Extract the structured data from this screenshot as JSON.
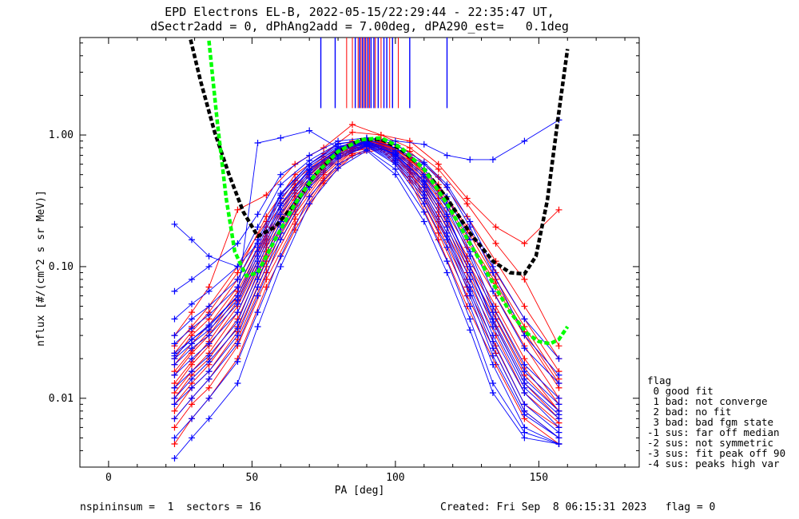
{
  "title": {
    "line1": "EPD Electrons EL-B, 2022-05-15/22:29:44 - 22:35:47 UT,",
    "line2": "dSectr2add = 0, dPhAng2add = 7.00deg, dPA290_est=   0.1deg"
  },
  "legend": {
    "header": "flag",
    "items": [
      " 0 good fit",
      " 1 bad: not converge",
      " 2 bad: no fit",
      " 3 bad: bad fgm state",
      "-1 sus: far off median",
      "-2 sus: not symmetric",
      "-3 sus: fit peak off 90",
      "-4 sus: peaks high var"
    ]
  },
  "footer": {
    "left": "nspininsum =  1  sectors = 16",
    "right": "Created: Fri Sep  8 06:15:31 2023   flag = 0"
  },
  "colors": {
    "red": "#ff0000",
    "blue": "#0000ff",
    "black": "#000000",
    "green": "#00ff00"
  },
  "chart_data": {
    "type": "line",
    "xlabel": "PA [deg]",
    "ylabel": "nflux [#/(cm^2 s sr MeV)]",
    "xlim": [
      -10,
      185
    ],
    "ylim": [
      0.003,
      5.5
    ],
    "yscale": "log",
    "xticks": [
      0,
      50,
      100,
      150
    ],
    "yticks": [
      {
        "v": 0.01,
        "label": "0.01"
      },
      {
        "v": 0.1,
        "label": "0.10"
      },
      {
        "v": 1.0,
        "label": "1.00"
      }
    ],
    "vertical_markers": {
      "red": [
        83,
        85,
        87,
        88,
        89,
        90,
        91,
        93,
        95,
        98,
        101
      ],
      "blue": [
        74,
        79,
        86,
        87.5,
        88.5,
        89.5,
        90.5,
        91.5,
        92.5,
        94,
        96,
        97,
        99,
        105,
        118
      ]
    },
    "fit_curves": [
      {
        "color": "black",
        "x": [
          28,
          32,
          37,
          42,
          47,
          52,
          58,
          65,
          72,
          80,
          88,
          95,
          102,
          110,
          118,
          126,
          134,
          140,
          145,
          149,
          153,
          157,
          160
        ],
        "y": [
          6.0,
          2.6,
          1.05,
          0.5,
          0.26,
          0.17,
          0.2,
          0.3,
          0.5,
          0.75,
          0.92,
          0.93,
          0.78,
          0.55,
          0.33,
          0.18,
          0.11,
          0.09,
          0.088,
          0.12,
          0.32,
          1.5,
          4.5
        ]
      },
      {
        "color": "green",
        "x": [
          35,
          38,
          41,
          44,
          48,
          52,
          58,
          65,
          72,
          80,
          88,
          95,
          102,
          110,
          118,
          126,
          134,
          140,
          146,
          150,
          154,
          157,
          160
        ],
        "y": [
          5.2,
          1.2,
          0.33,
          0.13,
          0.085,
          0.09,
          0.16,
          0.3,
          0.5,
          0.75,
          0.92,
          0.95,
          0.8,
          0.55,
          0.3,
          0.15,
          0.075,
          0.045,
          0.031,
          0.027,
          0.026,
          0.028,
          0.035
        ]
      }
    ],
    "red_series_x": [
      23,
      29,
      35,
      45,
      55,
      65,
      75,
      85,
      95,
      105,
      115,
      125,
      135,
      145,
      157
    ],
    "red_series": [
      [
        0.012,
        0.018,
        0.025,
        0.05,
        0.14,
        0.32,
        0.58,
        0.82,
        0.86,
        0.62,
        0.3,
        0.12,
        0.05,
        0.02,
        0.009
      ],
      [
        0.009,
        0.013,
        0.018,
        0.035,
        0.11,
        0.27,
        0.52,
        0.78,
        0.84,
        0.55,
        0.24,
        0.09,
        0.035,
        0.013,
        0.007
      ],
      [
        0.015,
        0.022,
        0.03,
        0.06,
        0.16,
        0.36,
        0.6,
        0.85,
        0.88,
        0.66,
        0.36,
        0.16,
        0.07,
        0.03,
        0.012
      ],
      [
        0.007,
        0.01,
        0.014,
        0.028,
        0.09,
        0.23,
        0.47,
        0.75,
        0.82,
        0.52,
        0.2,
        0.07,
        0.025,
        0.009,
        0.006
      ],
      [
        0.02,
        0.03,
        0.04,
        0.08,
        0.2,
        0.42,
        0.65,
        0.88,
        0.9,
        0.7,
        0.42,
        0.2,
        0.09,
        0.04,
        0.016
      ],
      [
        0.011,
        0.016,
        0.022,
        0.045,
        0.13,
        0.3,
        0.56,
        0.8,
        0.85,
        0.6,
        0.28,
        0.11,
        0.045,
        0.017,
        0.008
      ],
      [
        0.006,
        0.009,
        0.012,
        0.025,
        0.08,
        0.21,
        0.45,
        0.72,
        0.8,
        0.48,
        0.18,
        0.06,
        0.022,
        0.008,
        0.005
      ],
      [
        0.025,
        0.035,
        0.05,
        0.1,
        0.22,
        0.45,
        0.68,
        0.9,
        0.92,
        0.75,
        0.48,
        0.24,
        0.11,
        0.05,
        0.02
      ],
      [
        0.013,
        0.019,
        0.027,
        0.055,
        0.15,
        0.34,
        0.59,
        0.83,
        0.87,
        0.64,
        0.33,
        0.14,
        0.06,
        0.025,
        0.01
      ],
      [
        0.008,
        0.012,
        0.016,
        0.032,
        0.1,
        0.25,
        0.5,
        0.76,
        0.83,
        0.54,
        0.22,
        0.08,
        0.03,
        0.011,
        0.0065
      ],
      [
        0.018,
        0.026,
        0.036,
        0.07,
        0.18,
        0.4,
        0.63,
        0.87,
        0.89,
        0.68,
        0.4,
        0.19,
        0.08,
        0.035,
        0.014
      ],
      [
        0.01,
        0.015,
        0.02,
        0.04,
        0.12,
        0.29,
        0.54,
        0.79,
        0.84,
        0.58,
        0.26,
        0.1,
        0.04,
        0.015,
        0.008
      ],
      [
        0.0045,
        0.007,
        0.01,
        0.02,
        0.07,
        0.19,
        0.43,
        0.7,
        0.78,
        0.45,
        0.16,
        0.05,
        0.018,
        0.007,
        0.0045
      ],
      [
        0.022,
        0.032,
        0.045,
        0.09,
        0.24,
        0.5,
        0.72,
        1.05,
        1.0,
        0.8,
        0.55,
        0.3,
        0.15,
        0.08,
        0.025
      ],
      [
        0.016,
        0.023,
        0.032,
        0.065,
        0.17,
        0.38,
        0.62,
        0.86,
        0.88,
        0.67,
        0.38,
        0.17,
        0.075,
        0.032,
        0.013
      ],
      [
        0.03,
        0.045,
        0.07,
        0.27,
        0.35,
        0.6,
        0.8,
        1.2,
        1.0,
        0.9,
        0.6,
        0.33,
        0.2,
        0.15,
        0.27
      ]
    ],
    "blue_series_x": [
      23,
      29,
      35,
      45,
      52,
      60,
      70,
      80,
      90,
      100,
      110,
      118,
      126,
      134,
      145,
      157
    ],
    "blue_series": [
      [
        0.022,
        0.028,
        0.035,
        0.06,
        0.13,
        0.3,
        0.55,
        0.78,
        0.88,
        0.72,
        0.45,
        0.25,
        0.1,
        0.04,
        0.014,
        0.008
      ],
      [
        0.015,
        0.02,
        0.026,
        0.045,
        0.1,
        0.25,
        0.5,
        0.75,
        0.86,
        0.68,
        0.4,
        0.2,
        0.08,
        0.03,
        0.011,
        0.006
      ],
      [
        0.03,
        0.04,
        0.05,
        0.08,
        0.16,
        0.36,
        0.6,
        0.82,
        0.9,
        0.76,
        0.5,
        0.3,
        0.13,
        0.05,
        0.018,
        0.01
      ],
      [
        0.01,
        0.014,
        0.019,
        0.034,
        0.08,
        0.2,
        0.44,
        0.7,
        0.84,
        0.64,
        0.35,
        0.17,
        0.065,
        0.024,
        0.008,
        0.005
      ],
      [
        0.018,
        0.024,
        0.03,
        0.052,
        0.11,
        0.27,
        0.52,
        0.77,
        0.87,
        0.7,
        0.42,
        0.22,
        0.09,
        0.035,
        0.012,
        0.007
      ],
      [
        0.007,
        0.01,
        0.014,
        0.026,
        0.06,
        0.16,
        0.4,
        0.66,
        0.82,
        0.6,
        0.3,
        0.14,
        0.05,
        0.018,
        0.006,
        0.0045
      ],
      [
        0.04,
        0.052,
        0.065,
        0.1,
        0.2,
        0.42,
        0.64,
        0.86,
        0.92,
        0.8,
        0.55,
        0.34,
        0.16,
        0.065,
        0.024,
        0.013
      ],
      [
        0.012,
        0.016,
        0.021,
        0.038,
        0.09,
        0.22,
        0.47,
        0.72,
        0.85,
        0.66,
        0.37,
        0.18,
        0.07,
        0.027,
        0.009,
        0.0055
      ],
      [
        0.005,
        0.007,
        0.01,
        0.019,
        0.045,
        0.12,
        0.34,
        0.6,
        0.78,
        0.55,
        0.26,
        0.11,
        0.04,
        0.013,
        0.0055,
        0.0045
      ],
      [
        0.026,
        0.034,
        0.043,
        0.07,
        0.14,
        0.33,
        0.58,
        0.8,
        0.89,
        0.74,
        0.48,
        0.28,
        0.12,
        0.045,
        0.016,
        0.009
      ],
      [
        0.009,
        0.012,
        0.016,
        0.03,
        0.07,
        0.18,
        0.42,
        0.68,
        0.83,
        0.62,
        0.33,
        0.16,
        0.06,
        0.021,
        0.0075,
        0.005
      ],
      [
        0.02,
        0.026,
        0.033,
        0.056,
        0.12,
        0.29,
        0.54,
        0.78,
        0.88,
        0.71,
        0.44,
        0.24,
        0.1,
        0.038,
        0.013,
        0.0075
      ],
      [
        0.065,
        0.08,
        0.1,
        0.15,
        0.25,
        0.5,
        0.7,
        0.9,
        0.95,
        0.85,
        0.62,
        0.42,
        0.22,
        0.1,
        0.04,
        0.02
      ],
      [
        0.0035,
        0.005,
        0.007,
        0.013,
        0.035,
        0.1,
        0.3,
        0.56,
        0.76,
        0.5,
        0.22,
        0.09,
        0.033,
        0.011,
        0.005,
        0.0045
      ],
      [
        0.021,
        0.028,
        0.036,
        0.06,
        0.87,
        0.95,
        1.08,
        0.8,
        0.95,
        0.9,
        0.85,
        0.7,
        0.65,
        0.65,
        0.9,
        1.3
      ],
      [
        0.21,
        0.16,
        0.12,
        0.1,
        0.15,
        0.35,
        0.6,
        0.85,
        0.93,
        0.8,
        0.6,
        0.4,
        0.2,
        0.09,
        0.03,
        0.015
      ]
    ]
  }
}
